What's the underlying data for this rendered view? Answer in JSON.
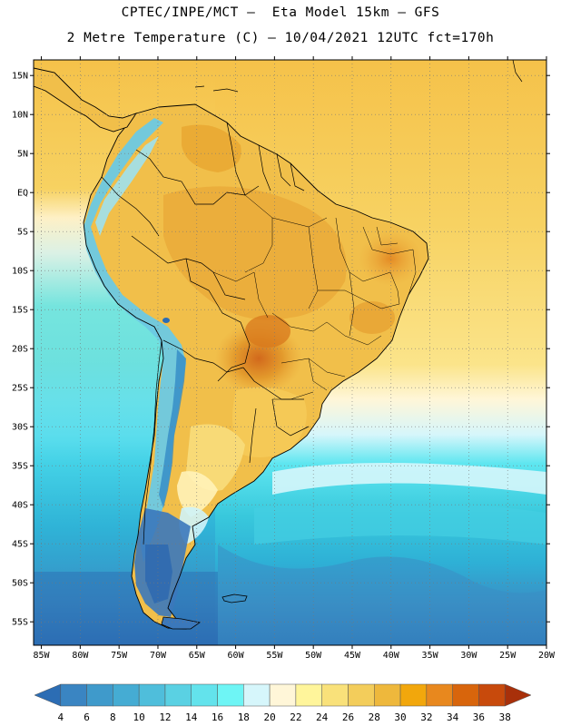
{
  "title": {
    "line1": "CPTEC/INPE/MCT –  Eta Model 15km – GFS",
    "line2": "2 Metre Temperature (C) – 10/04/2021 12UTC fct=170h"
  },
  "map": {
    "lon_ticks": [
      "85W",
      "80W",
      "75W",
      "70W",
      "65W",
      "60W",
      "55W",
      "50W",
      "45W",
      "40W",
      "35W",
      "30W",
      "25W",
      "20W"
    ],
    "lat_ticks": [
      "15N",
      "10N",
      "5N",
      "EQ",
      "5S",
      "10S",
      "15S",
      "20S",
      "25S",
      "30S",
      "35S",
      "40S",
      "45S",
      "50S",
      "55S"
    ],
    "lon_range": [
      -86,
      -20
    ],
    "lat_range": [
      -58,
      17
    ],
    "ocean_colors": [
      "#f5c24a",
      "#f7d262",
      "#fde88a",
      "#fff6d8",
      "#d6f6fb",
      "#5ee6f0",
      "#38c8dc",
      "#2eb0d6",
      "#3a8ec4",
      "#2c6db4"
    ],
    "land_colors": {
      "base": "#f1bf4a",
      "warm": "#e9a72e",
      "hot": "#db7a1e",
      "andes_cold": "#5cb8d8",
      "andes_mid": "#9cd6e6",
      "patagonia": "#3a86c6"
    }
  },
  "colorbar": {
    "labels": [
      "4",
      "6",
      "8",
      "10",
      "12",
      "14",
      "16",
      "18",
      "20",
      "22",
      "24",
      "26",
      "28",
      "30",
      "32",
      "34",
      "36",
      "38"
    ],
    "colors": [
      "#2c6db4",
      "#3a85c2",
      "#3f9acb",
      "#45acd3",
      "#4fbedb",
      "#5ad1e3",
      "#63e3ec",
      "#6ef5f5",
      "#d6f6fb",
      "#fff6d8",
      "#fff59b",
      "#f9e17a",
      "#f3cd5b",
      "#eeb83c",
      "#f2a70c",
      "#e8881e",
      "#d8650c",
      "#c84a0c",
      "#a8300a"
    ]
  }
}
